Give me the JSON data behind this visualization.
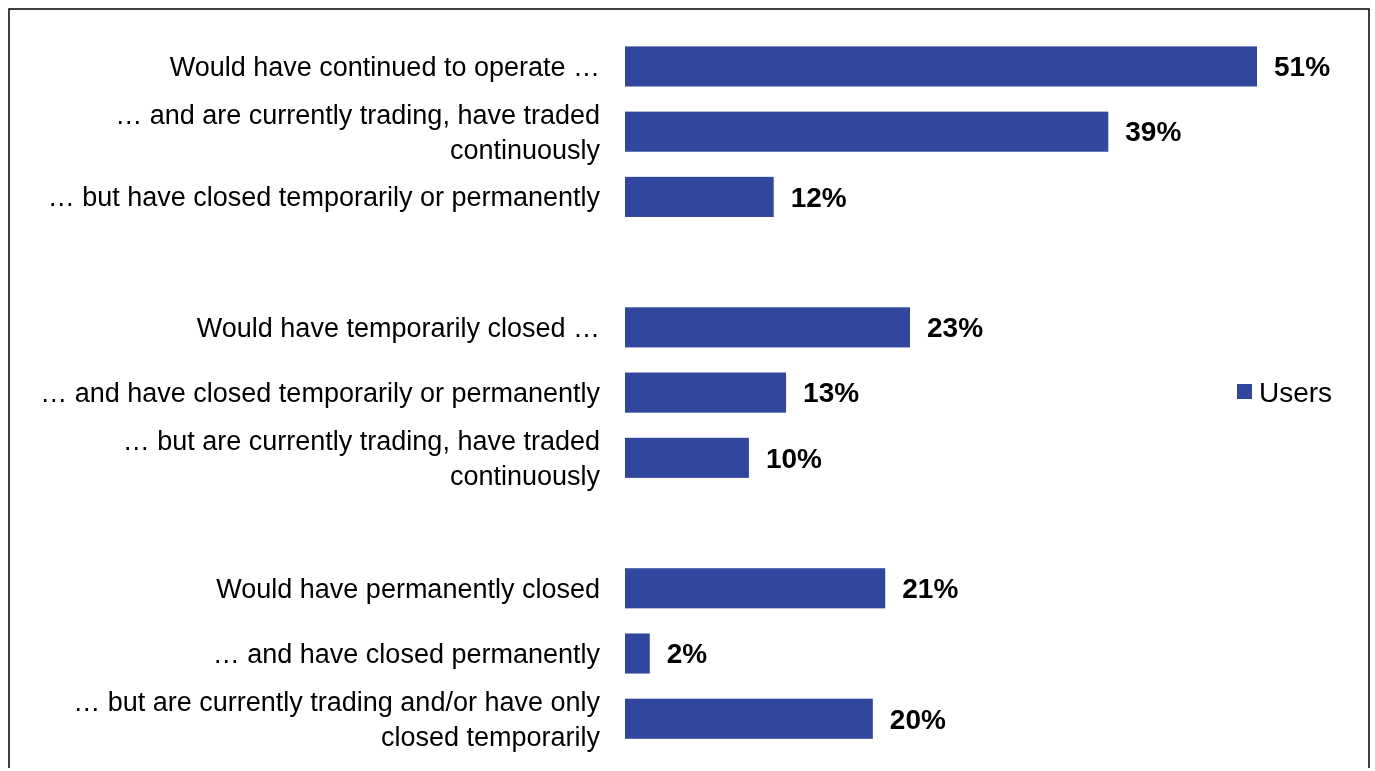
{
  "chart_data": {
    "type": "bar",
    "orientation": "horizontal",
    "categories": [
      "Would have continued to operate …",
      "… and are currently trading, have traded continuously",
      "… but have closed temporarily or permanently",
      null,
      "Would have temporarily closed …",
      "… and have closed temporarily or permanently",
      "… but are currently trading, have traded continuously",
      null,
      "Would have permanently closed",
      "… and have closed permanently",
      "… but are currently trading and/or have only closed temporarily"
    ],
    "series": [
      {
        "name": "Users",
        "color": "#31479e",
        "values": [
          51,
          39,
          12,
          null,
          23,
          13,
          10,
          null,
          21,
          2,
          20
        ],
        "value_labels": [
          "51%",
          "39%",
          "12%",
          null,
          "23%",
          "13%",
          "10%",
          null,
          "21%",
          "2%",
          "20%"
        ]
      }
    ],
    "tick_labels": "y",
    "legend": "right"
  }
}
